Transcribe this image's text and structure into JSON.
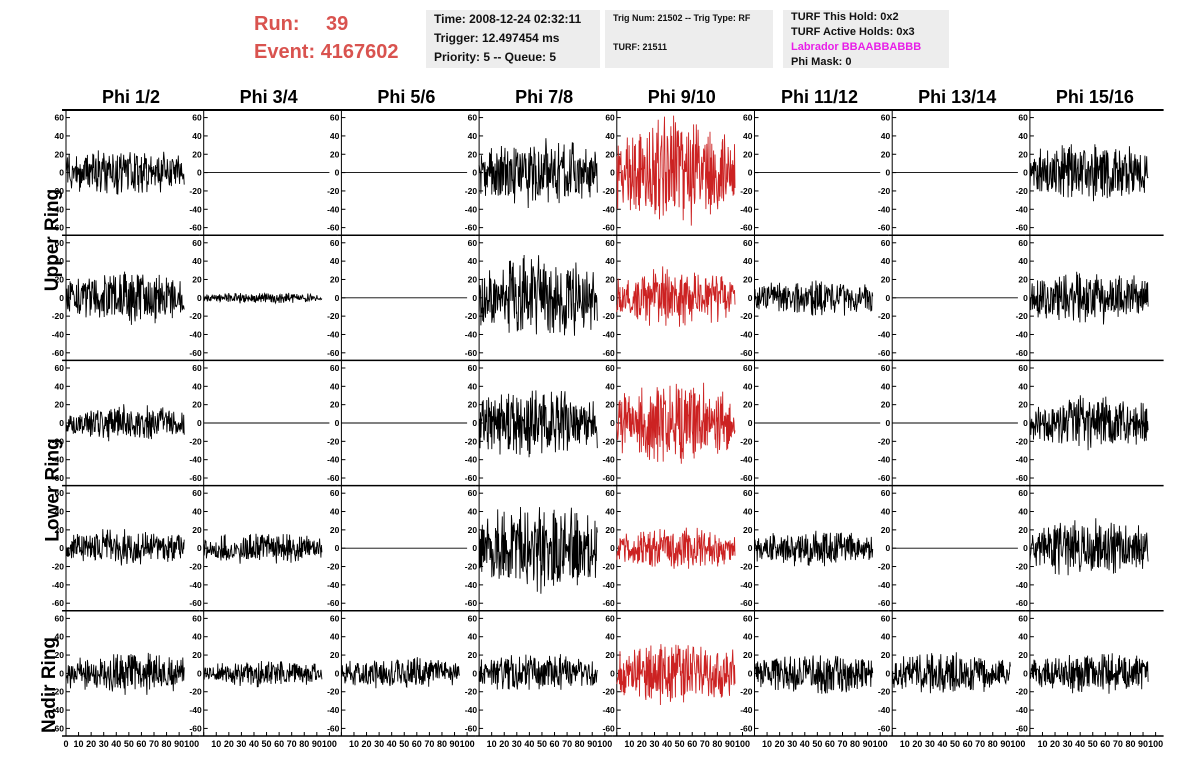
{
  "header": {
    "run_label": "Run:",
    "run_value": "39",
    "event_label": "Event:",
    "event_value": "4167602",
    "time": "Time: 2008-12-24 02:32:11",
    "trigger": "Trigger: 12.497454 ms",
    "priority": "Priority: 5 -- Queue: 5",
    "trig_num": "Trig Num: 21502 -- Trig Type: RF",
    "turf": "TURF: 21511",
    "turf_hold": "TURF This Hold: 0x2",
    "turf_active": "TURF Active Holds: 0x3",
    "labrador": "Labrador BBAABBABBB",
    "phi_mask": "Phi Mask: 0"
  },
  "columns": [
    "Phi 1/2",
    "Phi 3/4",
    "Phi 5/6",
    "Phi 7/8",
    "Phi 9/10",
    "Phi 11/12",
    "Phi 13/14",
    "Phi 15/16"
  ],
  "row_labels": [
    "Upper Ring",
    "Lower Ring",
    "Nadir Ring"
  ],
  "y_ticks": [
    "60",
    "40",
    "20",
    "0",
    "-20",
    "-40",
    "-60"
  ],
  "x_ticks": [
    "0",
    "10",
    "20",
    "30",
    "40",
    "50",
    "60",
    "70",
    "80",
    "90",
    "100"
  ],
  "colors": {
    "trace": "#000000",
    "highlight": "#cc2222",
    "run_text": "#d9534f",
    "labrador": "#e81ee8",
    "info_bg": "#ededed"
  },
  "chart_data": {
    "type": "line",
    "title": "",
    "xlim": [
      0,
      100
    ],
    "ylim": [
      -65,
      65
    ],
    "rows": 5,
    "cols": 8,
    "highlight_column": 4,
    "panel_amplitude": [
      [
        18,
        0,
        0,
        25,
        40,
        0,
        0,
        22
      ],
      [
        20,
        4,
        0,
        32,
        22,
        14,
        0,
        20
      ],
      [
        14,
        0,
        0,
        26,
        32,
        0,
        0,
        20
      ],
      [
        14,
        12,
        0,
        32,
        16,
        14,
        0,
        22
      ],
      [
        16,
        10,
        12,
        14,
        26,
        16,
        16,
        16
      ]
    ]
  }
}
